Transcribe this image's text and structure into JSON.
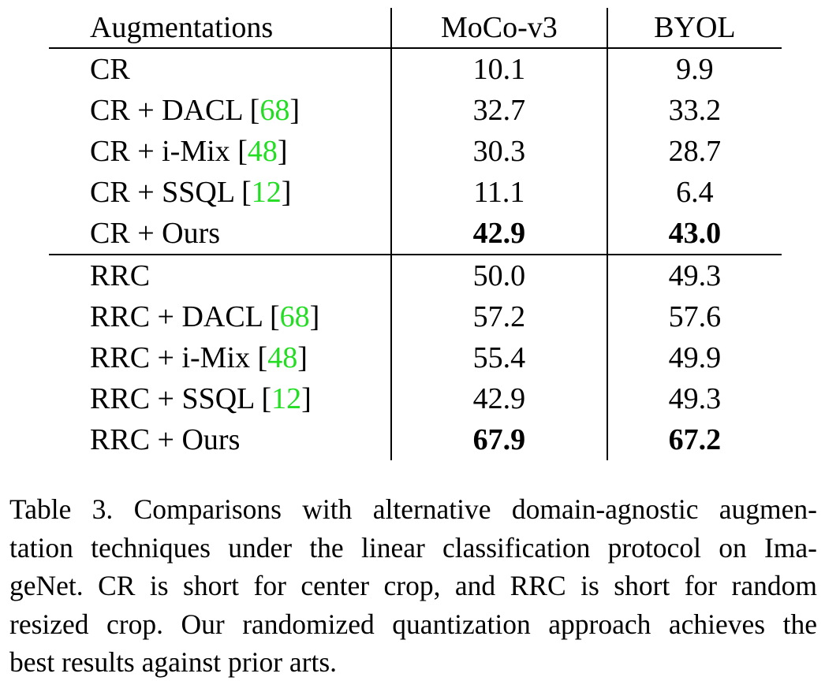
{
  "table": {
    "headers": [
      "Augmentations",
      "MoCo-v3",
      "BYOL"
    ],
    "groups": [
      {
        "rows": [
          {
            "method": "CR",
            "cite": "",
            "moco": "10.1",
            "byol": "9.9"
          },
          {
            "method": "CR + DACL ",
            "cite": "68",
            "moco": "32.7",
            "byol": "33.2"
          },
          {
            "method": "CR + i-Mix ",
            "cite": "48",
            "moco": "30.3",
            "byol": "28.7"
          },
          {
            "method": "CR + SSQL ",
            "cite": "12",
            "moco": "11.1",
            "byol": "6.4"
          },
          {
            "method": "CR + Ours",
            "cite": "",
            "moco": "42.9",
            "byol": "43.0"
          }
        ]
      },
      {
        "rows": [
          {
            "method": "RRC",
            "cite": "",
            "moco": "50.0",
            "byol": "49.3"
          },
          {
            "method": "RRC + DACL ",
            "cite": "68",
            "moco": "57.2",
            "byol": "57.6"
          },
          {
            "method": "RRC + i-Mix ",
            "cite": "48",
            "moco": "55.4",
            "byol": "49.9"
          },
          {
            "method": "RRC + SSQL ",
            "cite": "12",
            "moco": "42.9",
            "byol": "49.3"
          },
          {
            "method": "RRC + Ours",
            "cite": "",
            "moco": "67.9",
            "byol": "67.2"
          }
        ]
      }
    ],
    "best_rows": [
      "CR + Ours",
      "RRC + Ours"
    ],
    "cite_color": "#22dd22"
  },
  "caption": {
    "lines": [
      "Table 3. Comparisons with alternative domain-agnostic augmen-",
      "tation techniques under the linear classification protocol on Ima-",
      "geNet.  CR is short for center crop, and RRC is short for random",
      "resized crop. Our randomized quantization approach achieves the",
      "best results against prior arts."
    ]
  }
}
